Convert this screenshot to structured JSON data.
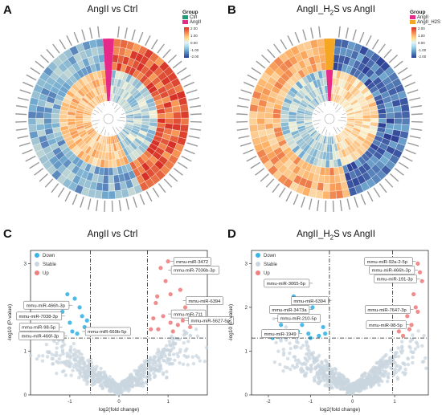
{
  "panels": {
    "A": {
      "letter": "A",
      "title": "AngII vs Ctrl"
    },
    "B": {
      "letter": "B",
      "title_main": "AngII_H",
      "title_sub": "2",
      "title_rest": "S vs AngII"
    },
    "C": {
      "letter": "C",
      "title": "AngII vs Ctrl"
    },
    "D": {
      "letter": "D",
      "title_main": "AngII_H",
      "title_sub": "2",
      "title_rest": "S vs AngII"
    }
  },
  "legendA": {
    "title": "Group",
    "items": [
      "Ctrl",
      "AngII"
    ],
    "colors": [
      "#1b9e77",
      "#e7298a"
    ]
  },
  "legendB": {
    "title": "Group",
    "items": [
      "AngII",
      "AngII_H2S"
    ],
    "colors": [
      "#e7298a",
      "#f5a623"
    ]
  },
  "gradTicks": [
    "2.00",
    "1.00",
    "0.00",
    "-1.00",
    "-2.00"
  ],
  "colors": {
    "down": "#39b4e6",
    "stable": "#c9d6df",
    "up": "#f08080"
  },
  "volcano_legend": [
    "Down",
    "Stable",
    "Up"
  ],
  "chart_data": [
    {
      "type": "scatter",
      "title": "AngII vs Ctrl",
      "xlabel": "log2(fold change)",
      "ylabel": "-log10 (P-value)",
      "xticks": [
        "-1",
        "0",
        "1"
      ],
      "yticks": [
        "0",
        "1",
        "2",
        "3"
      ],
      "labels": [
        {
          "text": "mmu-miR-3472",
          "group": "up"
        },
        {
          "text": "mmu-miR-7036b-3p",
          "group": "up"
        },
        {
          "text": "mmu-miR-6394",
          "group": "up"
        },
        {
          "text": "mmu-miR-711",
          "group": "up"
        },
        {
          "text": "mmu-miR-5627-5p",
          "group": "up"
        },
        {
          "text": "mmu-miR-466h-3p",
          "group": "down"
        },
        {
          "text": "mmu-miR-7038-3p",
          "group": "down"
        },
        {
          "text": "mmu-miR-98-5p",
          "group": "down"
        },
        {
          "text": "mmu-miR-669b-5p",
          "group": "down"
        },
        {
          "text": "mmu-miR-466f-3p",
          "group": "down"
        }
      ]
    },
    {
      "type": "scatter",
      "title": "AngII_H2S vs AngII",
      "xlabel": "log2(fold change)",
      "ylabel": "-log10 (P-value)",
      "xticks": [
        "-2",
        "-1",
        "0",
        "1"
      ],
      "yticks": [
        "0",
        "1",
        "2",
        "3"
      ],
      "labels": [
        {
          "text": "mmu-miR-92a-2-5p",
          "group": "up"
        },
        {
          "text": "mmu-miR-466h-3p",
          "group": "up"
        },
        {
          "text": "mmu-miR-191-3p",
          "group": "up"
        },
        {
          "text": "mmu-miR-7647-3p",
          "group": "up"
        },
        {
          "text": "mmu-miR-98-5p",
          "group": "up"
        },
        {
          "text": "mmu-miR-3065-5p",
          "group": "down"
        },
        {
          "text": "mmu-miR-6394",
          "group": "down"
        },
        {
          "text": "mmu-miR-3473a",
          "group": "down"
        },
        {
          "text": "mmu-miR-210-5p",
          "group": "down"
        },
        {
          "text": "mmu-miR-1949",
          "group": "down"
        }
      ]
    }
  ]
}
